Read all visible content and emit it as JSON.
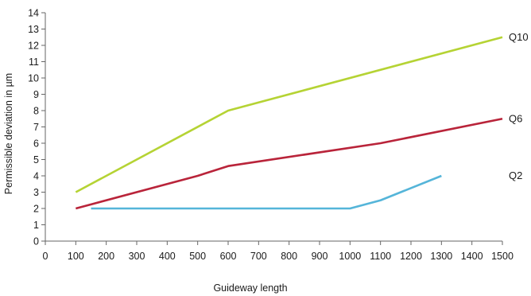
{
  "chart_data": {
    "type": "line",
    "title": "",
    "xlabel": "Guideway length",
    "ylabel": "Permissible deviation in µm",
    "xlim": [
      0,
      1500
    ],
    "ylim": [
      0,
      14
    ],
    "x_ticks": [
      0,
      100,
      200,
      300,
      400,
      500,
      600,
      700,
      800,
      900,
      1000,
      1100,
      1200,
      1300,
      1400,
      1500
    ],
    "y_ticks": [
      0,
      1,
      2,
      3,
      4,
      5,
      6,
      7,
      8,
      9,
      10,
      11,
      12,
      13,
      14
    ],
    "grid": false,
    "legend": "series labels at line ends (right)",
    "series": [
      {
        "name": "Q10",
        "color": "#b5d334",
        "points": [
          [
            100,
            3
          ],
          [
            600,
            8
          ],
          [
            1500,
            12.5
          ]
        ]
      },
      {
        "name": "Q6",
        "color": "#b9243a",
        "points": [
          [
            100,
            2
          ],
          [
            500,
            4
          ],
          [
            600,
            4.6
          ],
          [
            1100,
            6
          ],
          [
            1500,
            7.5
          ]
        ]
      },
      {
        "name": "Q2",
        "color": "#55b5d9",
        "points": [
          [
            150,
            2
          ],
          [
            1000,
            2
          ],
          [
            1100,
            2.5
          ],
          [
            1300,
            4
          ]
        ]
      }
    ]
  }
}
